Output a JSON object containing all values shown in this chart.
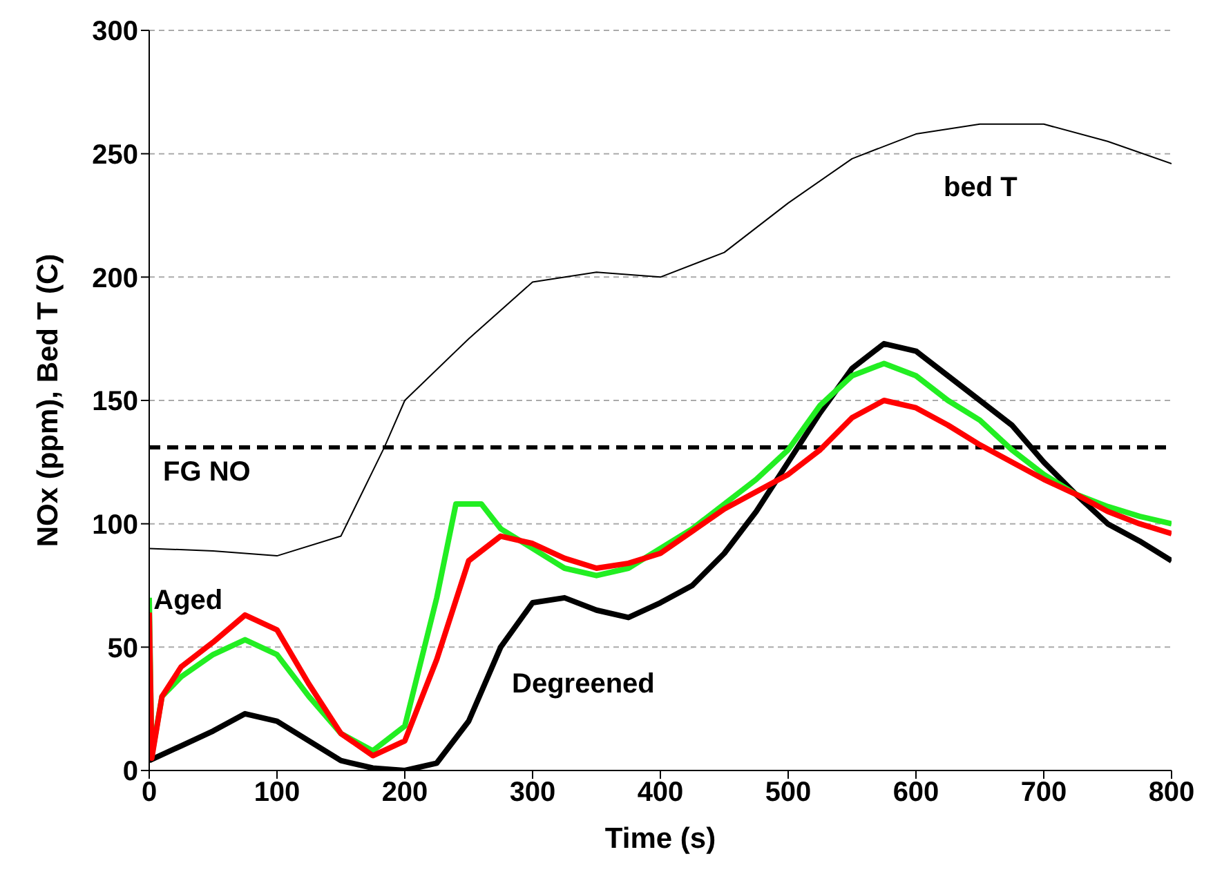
{
  "chart_data": {
    "type": "line",
    "xlabel": "Time (s)",
    "ylabel": "NOx (ppm), Bed T (C)",
    "xlim": [
      0,
      800
    ],
    "xticks": [
      0,
      100,
      200,
      300,
      400,
      500,
      600,
      700,
      800
    ],
    "ylim": [
      0,
      300
    ],
    "yticks": [
      0,
      50,
      100,
      150,
      200,
      250,
      300
    ],
    "grid": "y",
    "marker": "none",
    "line_style": "solid",
    "ref_lines": [
      {
        "axis": "y",
        "value": 131,
        "label": "FG NO",
        "color": "#000000",
        "line_style": "dashed"
      }
    ],
    "series": [
      {
        "name": "bed T",
        "color": "#000000",
        "x": [
          0,
          50,
          100,
          150,
          184,
          200,
          250,
          300,
          350,
          400,
          450,
          500,
          550,
          600,
          650,
          700,
          750,
          800
        ],
        "values": [
          90,
          89,
          87,
          95,
          131,
          150,
          175,
          198,
          202,
          200,
          210,
          230,
          248,
          258,
          262,
          262,
          255,
          246
        ]
      },
      {
        "name": "Degreened",
        "color": "#000000",
        "x": [
          0,
          25,
          50,
          75,
          100,
          125,
          150,
          175,
          200,
          225,
          250,
          275,
          300,
          325,
          350,
          375,
          400,
          425,
          450,
          475,
          500,
          525,
          550,
          575,
          600,
          625,
          650,
          675,
          700,
          725,
          750,
          775,
          800
        ],
        "values": [
          4,
          10,
          16,
          23,
          20,
          12,
          4,
          1,
          0,
          3,
          20,
          50,
          68,
          70,
          65,
          62,
          68,
          75,
          88,
          105,
          125,
          145,
          163,
          173,
          170,
          160,
          150,
          140,
          125,
          112,
          100,
          93,
          85
        ]
      },
      {
        "color": "#22ee22",
        "x": [
          0,
          2,
          10,
          25,
          50,
          75,
          100,
          125,
          150,
          175,
          200,
          225,
          240,
          260,
          275,
          300,
          325,
          350,
          375,
          400,
          425,
          450,
          475,
          500,
          525,
          550,
          575,
          600,
          625,
          650,
          675,
          700,
          725,
          750,
          775,
          800
        ],
        "values": [
          70,
          6,
          30,
          38,
          47,
          53,
          47,
          30,
          15,
          8,
          18,
          70,
          108,
          108,
          98,
          90,
          82,
          79,
          82,
          90,
          98,
          108,
          118,
          130,
          148,
          160,
          165,
          160,
          150,
          142,
          130,
          120,
          112,
          107,
          103,
          100
        ]
      },
      {
        "name": "Aged",
        "color": "#ff0000",
        "x": [
          0,
          2,
          10,
          25,
          50,
          75,
          100,
          125,
          150,
          175,
          200,
          225,
          250,
          275,
          300,
          325,
          350,
          375,
          400,
          425,
          450,
          475,
          500,
          525,
          550,
          575,
          600,
          625,
          650,
          675,
          700,
          725,
          750,
          775,
          800
        ],
        "values": [
          64,
          5,
          30,
          42,
          52,
          63,
          57,
          35,
          15,
          6,
          12,
          45,
          85,
          95,
          92,
          86,
          82,
          84,
          88,
          97,
          106,
          113,
          120,
          130,
          143,
          150,
          147,
          140,
          132,
          125,
          118,
          112,
          105,
          100,
          96
        ]
      }
    ]
  }
}
